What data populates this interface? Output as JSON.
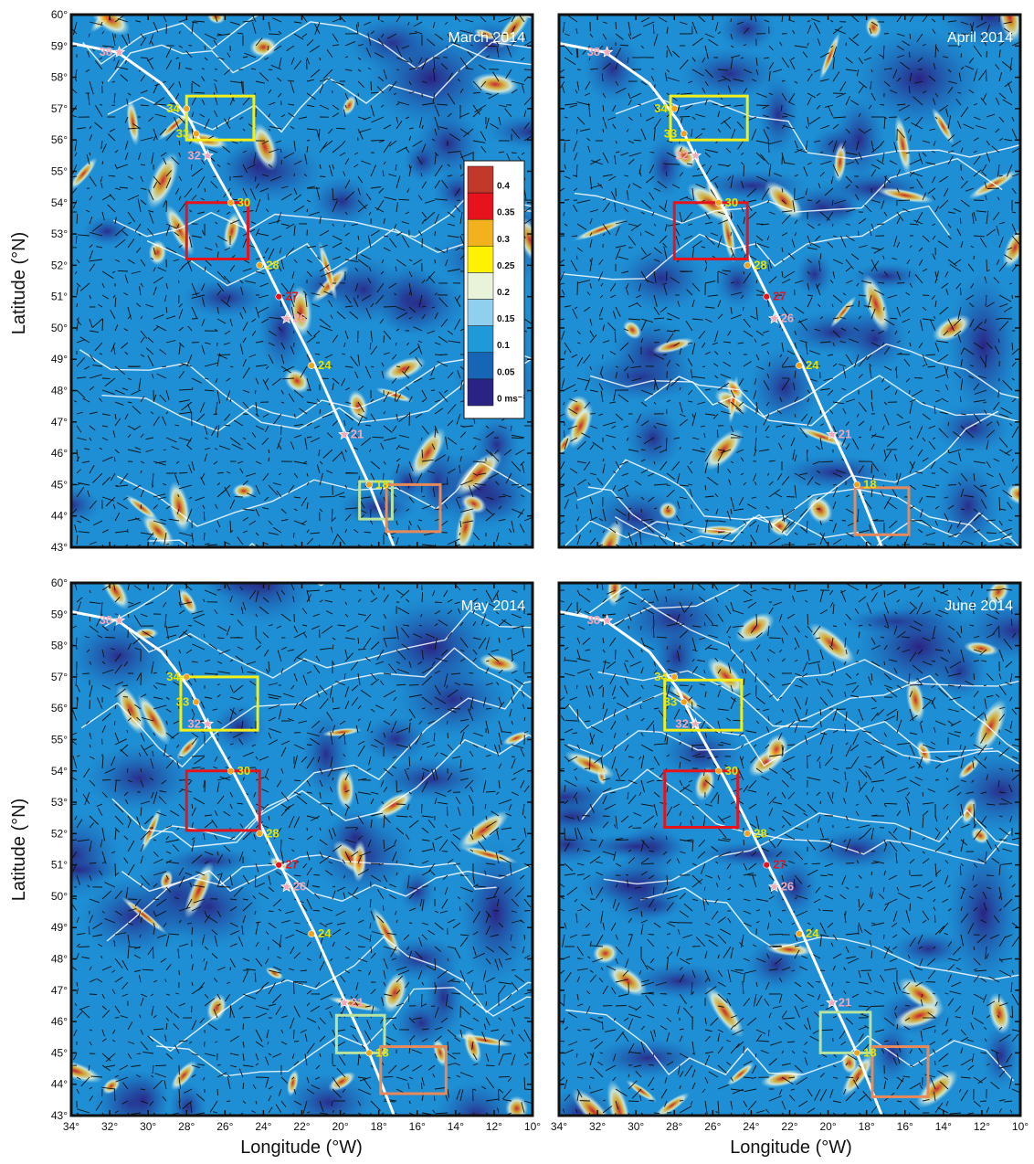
{
  "panels": [
    {
      "title": "March 2014"
    },
    {
      "title": "April 2014"
    },
    {
      "title": "May 2014"
    },
    {
      "title": "June 2014"
    }
  ],
  "axes": {
    "ylabel": "Latitude (°N)",
    "xlabel": "Longitude (°W)",
    "lat_ticks": [
      "43°",
      "44°",
      "45°",
      "46°",
      "47°",
      "48°",
      "49°",
      "50°",
      "51°",
      "52°",
      "53°",
      "54°",
      "55°",
      "56°",
      "57°",
      "58°",
      "59°",
      "60°"
    ],
    "lon_ticks": [
      "34°",
      "32°",
      "30°",
      "28°",
      "26°",
      "24°",
      "22°",
      "20°",
      "18°",
      "16°",
      "14°",
      "12°",
      "10°"
    ],
    "lat_range": [
      43,
      60
    ],
    "lon_range": [
      34,
      10
    ]
  },
  "colorbar": {
    "labels": [
      "0.4",
      "0.35",
      "0.3",
      "0.25",
      "0.2",
      "0.15",
      "0.1",
      "0.05",
      "0 ms⁻¹"
    ],
    "colors": [
      "#c0392b",
      "#e6131c",
      "#f2b21d",
      "#fff200",
      "#e9f3d9",
      "#8fd0ef",
      "#1e9ad8",
      "#1766b5",
      "#2b2383"
    ]
  },
  "track": {
    "color": "#ffffff",
    "points_lonlat": [
      [
        35,
        59.2
      ],
      [
        31.6,
        58.8
      ],
      [
        29.3,
        57.8
      ],
      [
        27.8,
        56.6
      ],
      [
        26.7,
        55.2
      ],
      [
        25.6,
        54.0
      ],
      [
        24.4,
        52.6
      ],
      [
        22.8,
        50.6
      ],
      [
        21.4,
        48.9
      ],
      [
        20.1,
        47.1
      ],
      [
        18.5,
        45.0
      ],
      [
        17.2,
        43.0
      ]
    ]
  },
  "stations": [
    {
      "label": "38",
      "lon": 31.5,
      "lat": 58.8,
      "color": "#f4a7b9",
      "marker": "star"
    },
    {
      "label": "34",
      "lon": 28.0,
      "lat": 57.0,
      "color": "#e5e500",
      "marker": "dot"
    },
    {
      "label": "33",
      "lon": 27.5,
      "lat": 56.2,
      "color": "#e5e500",
      "marker": "dot"
    },
    {
      "label": "32",
      "lon": 26.9,
      "lat": 55.5,
      "color": "#f4a7b9",
      "marker": "star"
    },
    {
      "label": "30",
      "lon": 25.7,
      "lat": 54.0,
      "color": "#e5e500",
      "marker": "dot"
    },
    {
      "label": "28",
      "lon": 24.2,
      "lat": 52.0,
      "color": "#e5e500",
      "marker": "dot"
    },
    {
      "label": "27",
      "lon": 23.2,
      "lat": 51.0,
      "color": "#e6131c",
      "marker": "dot"
    },
    {
      "label": "26",
      "lon": 22.8,
      "lat": 50.3,
      "color": "#f4a7b9",
      "marker": "star"
    },
    {
      "label": "24",
      "lon": 21.5,
      "lat": 48.8,
      "color": "#e5e500",
      "marker": "dot"
    },
    {
      "label": "21",
      "lon": 19.8,
      "lat": 46.6,
      "color": "#f4a7b9",
      "marker": "star"
    },
    {
      "label": "18",
      "lon": 18.5,
      "lat": 45.0,
      "color": "#e5e500",
      "marker": "dot"
    }
  ],
  "boxes": {
    "yellow": {
      "color": "#f2ef1a"
    },
    "red": {
      "color": "#e6131c"
    },
    "green": {
      "color": "#b7e4a0"
    },
    "orange": {
      "color": "#e8895a"
    }
  }
}
